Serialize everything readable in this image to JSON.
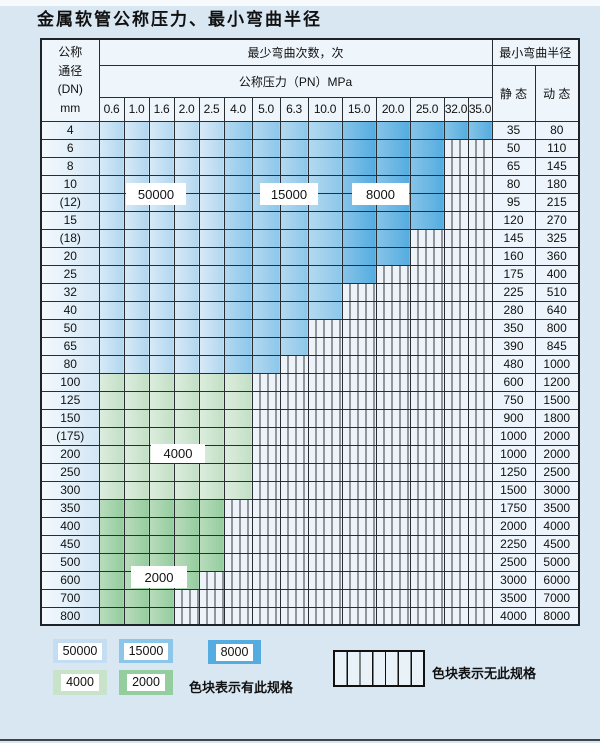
{
  "title": "金属软管公称压力、最小弯曲半径",
  "table": {
    "corner": [
      "公称",
      "通径",
      "(DN)",
      "mm"
    ],
    "bend_cycles_header": "最少弯曲次数，次",
    "radius_header": "最小弯曲半径",
    "pressure_header": "公称压力（PN）MPa",
    "pressure_cols": [
      "0.6",
      "1.0",
      "1.6",
      "2.0",
      "2.5",
      "4.0",
      "5.0",
      "6.3",
      "10.0",
      "15.0",
      "20.0",
      "25.0",
      "32.0",
      "35.0"
    ],
    "static_header": "静 态",
    "dynamic_header": "动 态",
    "rows": [
      {
        "dn": "4",
        "colored": 14,
        "zone": "blue",
        "static": "35",
        "dynamic": "80"
      },
      {
        "dn": "6",
        "colored": 12,
        "zone": "blue",
        "static": "50",
        "dynamic": "110"
      },
      {
        "dn": "8",
        "colored": 12,
        "zone": "blue",
        "static": "65",
        "dynamic": "145"
      },
      {
        "dn": "10",
        "colored": 12,
        "zone": "blue",
        "static": "80",
        "dynamic": "180"
      },
      {
        "dn": "(12)",
        "colored": 12,
        "zone": "blue",
        "static": "95",
        "dynamic": "215"
      },
      {
        "dn": "15",
        "colored": 12,
        "zone": "blue",
        "static": "120",
        "dynamic": "270"
      },
      {
        "dn": "(18)",
        "colored": 11,
        "zone": "blue",
        "static": "145",
        "dynamic": "325"
      },
      {
        "dn": "20",
        "colored": 11,
        "zone": "blue",
        "static": "160",
        "dynamic": "360"
      },
      {
        "dn": "25",
        "colored": 10,
        "zone": "blue",
        "static": "175",
        "dynamic": "400"
      },
      {
        "dn": "32",
        "colored": 9,
        "zone": "blue",
        "static": "225",
        "dynamic": "510"
      },
      {
        "dn": "40",
        "colored": 9,
        "zone": "blue",
        "static": "280",
        "dynamic": "640"
      },
      {
        "dn": "50",
        "colored": 8,
        "zone": "blue",
        "static": "350",
        "dynamic": "800"
      },
      {
        "dn": "65",
        "colored": 8,
        "zone": "blue",
        "static": "390",
        "dynamic": "845"
      },
      {
        "dn": "80",
        "colored": 7,
        "zone": "blue",
        "static": "480",
        "dynamic": "1000"
      },
      {
        "dn": "100",
        "colored": 6,
        "zone": "g4",
        "static": "600",
        "dynamic": "1200"
      },
      {
        "dn": "125",
        "colored": 6,
        "zone": "g4",
        "static": "750",
        "dynamic": "1500"
      },
      {
        "dn": "150",
        "colored": 6,
        "zone": "g4",
        "static": "900",
        "dynamic": "1800"
      },
      {
        "dn": "(175)",
        "colored": 6,
        "zone": "g4",
        "static": "1000",
        "dynamic": "2000"
      },
      {
        "dn": "200",
        "colored": 6,
        "zone": "g4",
        "static": "1000",
        "dynamic": "2000"
      },
      {
        "dn": "250",
        "colored": 6,
        "zone": "g4",
        "static": "1250",
        "dynamic": "2500"
      },
      {
        "dn": "300",
        "colored": 6,
        "zone": "g4",
        "static": "1500",
        "dynamic": "3000"
      },
      {
        "dn": "350",
        "colored": 5,
        "zone": "g2",
        "static": "1750",
        "dynamic": "3500"
      },
      {
        "dn": "400",
        "colored": 5,
        "zone": "g2",
        "static": "2000",
        "dynamic": "4000"
      },
      {
        "dn": "450",
        "colored": 5,
        "zone": "g2",
        "static": "2250",
        "dynamic": "4500"
      },
      {
        "dn": "500",
        "colored": 5,
        "zone": "g2",
        "static": "2500",
        "dynamic": "5000"
      },
      {
        "dn": "600",
        "colored": 4,
        "zone": "g2",
        "static": "3000",
        "dynamic": "6000"
      },
      {
        "dn": "700",
        "colored": 3,
        "zone": "g2",
        "static": "3500",
        "dynamic": "7000"
      },
      {
        "dn": "800",
        "colored": 3,
        "zone": "g2",
        "static": "4000",
        "dynamic": "8000"
      }
    ]
  },
  "zone_labels": [
    {
      "text": "50000"
    },
    {
      "text": "15000"
    },
    {
      "text": "8000"
    },
    {
      "text": "4000"
    },
    {
      "text": "2000"
    }
  ],
  "legend": {
    "items": [
      {
        "label": "50000"
      },
      {
        "label": "15000"
      },
      {
        "label": "8000"
      },
      {
        "label": "4000"
      },
      {
        "label": "2000"
      }
    ],
    "has_note": "色块表示有此规格",
    "none_note": "色块表示无此规格"
  },
  "colors": {
    "zone_50000": "#c3def2",
    "zone_15000": "#8cc7ea",
    "zone_8000": "#54ace0",
    "zone_4000": "#c9e3cb",
    "zone_2000": "#94cd9e",
    "no_spec_bg": "#edf3f9",
    "grid": "#2a2e33",
    "page_bg": "#d9e7f3"
  }
}
